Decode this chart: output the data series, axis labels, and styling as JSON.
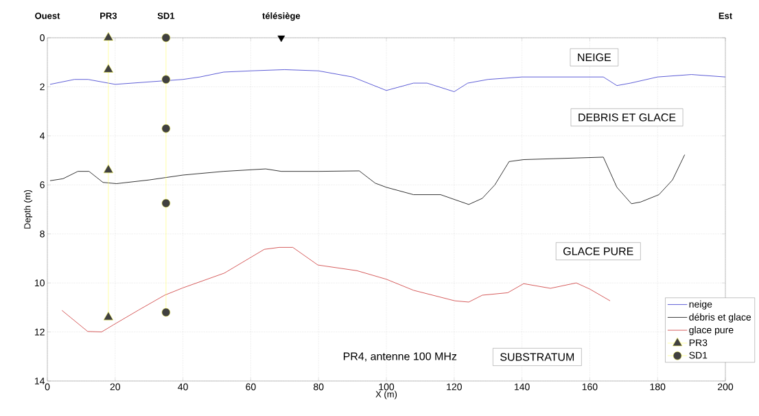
{
  "chart_data": {
    "type": "line",
    "xlabel": "X (m)",
    "ylabel": "Depth (m)",
    "xlim": [
      0,
      200
    ],
    "xticks": [
      0,
      20,
      40,
      60,
      80,
      100,
      120,
      140,
      160,
      180,
      200
    ],
    "ylim": [
      14,
      0
    ],
    "yticks": [
      0,
      2,
      4,
      6,
      8,
      10,
      12,
      14
    ],
    "grid": true,
    "legend": "bottom right",
    "series": [
      {
        "name": "neige",
        "color": "#3333cc",
        "marker": "none",
        "x": [
          0.8,
          8,
          12,
          20,
          40,
          45,
          52,
          60,
          70,
          80,
          90,
          100,
          108,
          112,
          120,
          124,
          130,
          140,
          160,
          164,
          168,
          172,
          180,
          190,
          200
        ],
        "values": [
          1.9,
          1.7,
          1.7,
          1.9,
          1.7,
          1.6,
          1.4,
          1.35,
          1.3,
          1.35,
          1.6,
          2.15,
          1.85,
          1.85,
          2.2,
          1.85,
          1.7,
          1.6,
          1.6,
          1.6,
          1.95,
          1.85,
          1.6,
          1.5,
          1.6
        ]
      },
      {
        "name": "débris et glace",
        "color": "#000000",
        "marker": "none",
        "x": [
          0.8,
          4.6,
          9,
          12.3,
          16.4,
          20.4,
          30,
          40,
          52,
          64.4,
          69,
          80,
          92,
          96.7,
          100,
          108,
          116,
          124.3,
          128.3,
          132,
          136.2,
          140.5,
          150,
          164,
          168,
          172.3,
          175,
          180.4,
          184.4,
          188
        ],
        "values": [
          5.83,
          5.75,
          5.45,
          5.45,
          5.9,
          5.95,
          5.8,
          5.6,
          5.45,
          5.35,
          5.45,
          5.45,
          5.43,
          5.93,
          6.1,
          6.4,
          6.4,
          6.8,
          6.55,
          6.0,
          5.05,
          4.97,
          4.93,
          4.87,
          6.1,
          6.77,
          6.7,
          6.4,
          5.8,
          4.77
        ]
      },
      {
        "name": "glace pure",
        "color": "#cc3333",
        "marker": "none",
        "x": [
          4.3,
          11.9,
          16,
          19.6,
          27,
          34.6,
          40,
          52.2,
          64,
          68.4,
          72.4,
          79.8,
          91.3,
          100,
          108,
          120.2,
          124.3,
          128.3,
          135.8,
          140.5,
          148.4,
          156,
          160,
          166
        ],
        "values": [
          11.12,
          11.98,
          12.0,
          11.7,
          11.1,
          10.5,
          10.2,
          9.6,
          8.63,
          8.55,
          8.55,
          9.27,
          9.5,
          9.85,
          10.3,
          10.73,
          10.78,
          10.5,
          10.4,
          10.03,
          10.22,
          10.0,
          10.25,
          10.73
        ]
      },
      {
        "name": "PR3",
        "color": "#ffff66",
        "marker": "triangle",
        "x": [
          18,
          18,
          18,
          18
        ],
        "values": [
          0,
          1.3,
          5.4,
          11.4
        ]
      },
      {
        "name": "SD1",
        "color": "#ffff66",
        "marker": "circle",
        "x": [
          35,
          35,
          35,
          35,
          35
        ],
        "values": [
          0,
          1.7,
          3.7,
          6.75,
          11.2
        ]
      },
      {
        "type": "scatter",
        "color": "#000000",
        "marker": "triangle",
        "x": [
          69
        ],
        "values": [
          0
        ]
      }
    ],
    "annotations": [
      "NEIGE",
      "DEBRIS ET GLACE",
      "GLACE PURE",
      "SUBSTRATUM",
      "PR4, antenne 100 MHz",
      "Ouest",
      "PR3",
      "SD1",
      "télésiège",
      "Est"
    ]
  }
}
